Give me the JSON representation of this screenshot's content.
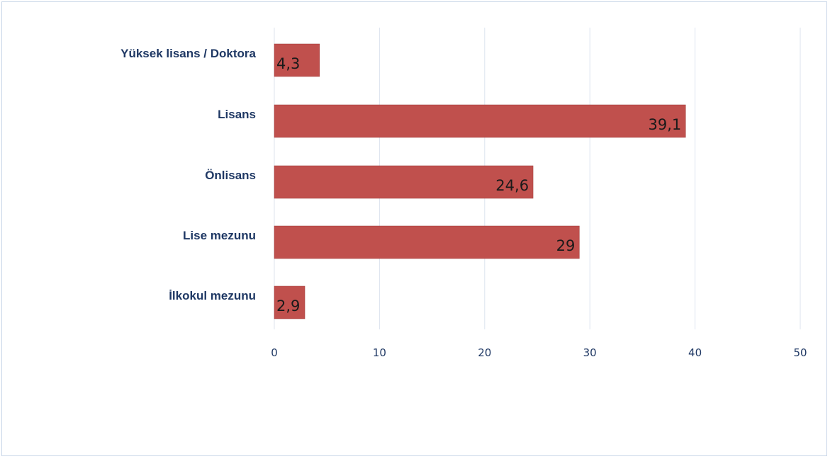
{
  "chart_data": {
    "type": "bar",
    "orientation": "horizontal",
    "categories": [
      "Yüksek lisans / Doktora",
      "Lisans",
      "Önlisans",
      "Lise mezunu",
      "İlkokul mezunu"
    ],
    "values": [
      4.3,
      39.1,
      24.6,
      29,
      2.9
    ],
    "value_labels": [
      "4,3",
      "39,1",
      "24,6",
      "29",
      "2,9"
    ],
    "xlim": [
      0,
      50
    ],
    "xticks": [
      0,
      10,
      20,
      30,
      40,
      50
    ],
    "xtick_labels": [
      "0",
      "10",
      "20",
      "30",
      "40",
      "50"
    ],
    "grid": true,
    "legend": "none",
    "title": "",
    "xlabel": "",
    "ylabel": ""
  },
  "colors": {
    "bar": "#c0504d",
    "label": "#1f3864",
    "grid": "#dce3ee"
  }
}
